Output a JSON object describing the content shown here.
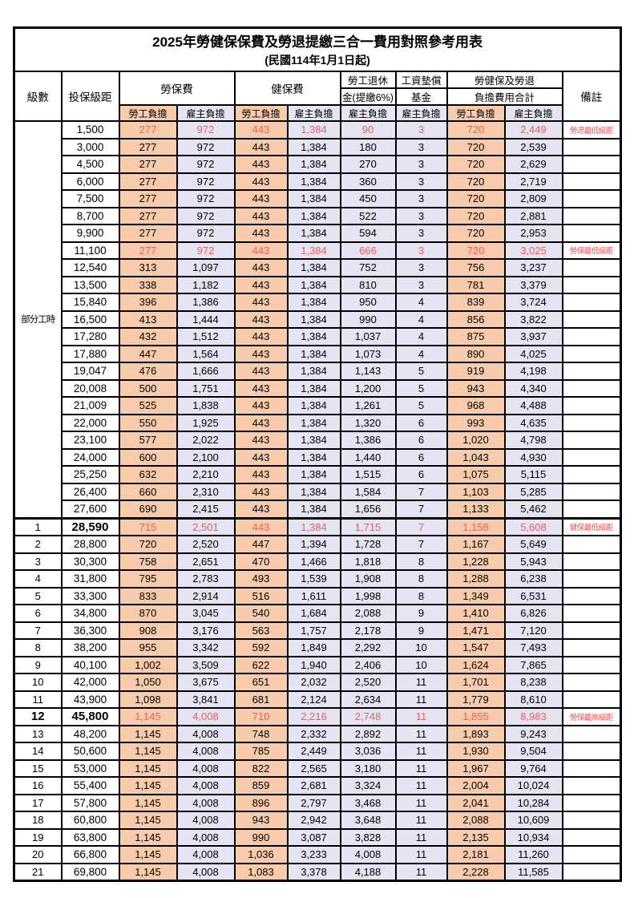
{
  "title": "2025年勞健保保費及勞退提繳三合一費用對照參考用表",
  "subtitle": "(民國114年1月1日起)",
  "header": {
    "level": "級數",
    "bracket": "投保級距",
    "labor": "勞保費",
    "health": "健保費",
    "pension_line1": "勞工退休",
    "pension_line2": "金(提繳6%)",
    "fund_line1": "工資墊償",
    "fund_line2": "基金",
    "total_line1": "勞健保及勞退",
    "total_line2": "負擔費用合計",
    "remark": "備註",
    "employee": "勞工負擔",
    "employer": "雇主負擔"
  },
  "part_time_label": "部分工時",
  "part_time_rowspan": 23,
  "colors": {
    "employee_bg": "#F8CBAD",
    "employer_bg": "#E4E4F2",
    "highlight_text": "#FA5A52",
    "remark_text": "#FA4B46",
    "border": "#000000"
  },
  "rows": [
    {
      "level": null,
      "bracket": "1,500",
      "v": [
        "277",
        "972",
        "443",
        "1,384",
        "90",
        "3",
        "720",
        "2,449"
      ],
      "remark": "勞退最低級距",
      "hl": true
    },
    {
      "level": null,
      "bracket": "3,000",
      "v": [
        "277",
        "972",
        "443",
        "1,384",
        "180",
        "3",
        "720",
        "2,539"
      ],
      "remark": ""
    },
    {
      "level": null,
      "bracket": "4,500",
      "v": [
        "277",
        "972",
        "443",
        "1,384",
        "270",
        "3",
        "720",
        "2,629"
      ],
      "remark": ""
    },
    {
      "level": null,
      "bracket": "6,000",
      "v": [
        "277",
        "972",
        "443",
        "1,384",
        "360",
        "3",
        "720",
        "2,719"
      ],
      "remark": ""
    },
    {
      "level": null,
      "bracket": "7,500",
      "v": [
        "277",
        "972",
        "443",
        "1,384",
        "450",
        "3",
        "720",
        "2,809"
      ],
      "remark": ""
    },
    {
      "level": null,
      "bracket": "8,700",
      "v": [
        "277",
        "972",
        "443",
        "1,384",
        "522",
        "3",
        "720",
        "2,881"
      ],
      "remark": ""
    },
    {
      "level": null,
      "bracket": "9,900",
      "v": [
        "277",
        "972",
        "443",
        "1,384",
        "594",
        "3",
        "720",
        "2,953"
      ],
      "remark": ""
    },
    {
      "level": null,
      "bracket": "11,100",
      "v": [
        "277",
        "972",
        "443",
        "1,384",
        "666",
        "3",
        "720",
        "3,025"
      ],
      "remark": "勞保最低級距",
      "hl": true
    },
    {
      "level": null,
      "bracket": "12,540",
      "v": [
        "313",
        "1,097",
        "443",
        "1,384",
        "752",
        "3",
        "756",
        "3,237"
      ],
      "remark": ""
    },
    {
      "level": null,
      "bracket": "13,500",
      "v": [
        "338",
        "1,182",
        "443",
        "1,384",
        "810",
        "3",
        "781",
        "3,379"
      ],
      "remark": ""
    },
    {
      "level": null,
      "bracket": "15,840",
      "v": [
        "396",
        "1,386",
        "443",
        "1,384",
        "950",
        "4",
        "839",
        "3,724"
      ],
      "remark": ""
    },
    {
      "level": null,
      "bracket": "16,500",
      "v": [
        "413",
        "1,444",
        "443",
        "1,384",
        "990",
        "4",
        "856",
        "3,822"
      ],
      "remark": ""
    },
    {
      "level": null,
      "bracket": "17,280",
      "v": [
        "432",
        "1,512",
        "443",
        "1,384",
        "1,037",
        "4",
        "875",
        "3,937"
      ],
      "remark": ""
    },
    {
      "level": null,
      "bracket": "17,880",
      "v": [
        "447",
        "1,564",
        "443",
        "1,384",
        "1,073",
        "4",
        "890",
        "4,025"
      ],
      "remark": ""
    },
    {
      "level": null,
      "bracket": "19,047",
      "v": [
        "476",
        "1,666",
        "443",
        "1,384",
        "1,143",
        "5",
        "919",
        "4,198"
      ],
      "remark": ""
    },
    {
      "level": null,
      "bracket": "20,008",
      "v": [
        "500",
        "1,751",
        "443",
        "1,384",
        "1,200",
        "5",
        "943",
        "4,340"
      ],
      "remark": ""
    },
    {
      "level": null,
      "bracket": "21,009",
      "v": [
        "525",
        "1,838",
        "443",
        "1,384",
        "1,261",
        "5",
        "968",
        "4,488"
      ],
      "remark": ""
    },
    {
      "level": null,
      "bracket": "22,000",
      "v": [
        "550",
        "1,925",
        "443",
        "1,384",
        "1,320",
        "6",
        "993",
        "4,635"
      ],
      "remark": ""
    },
    {
      "level": null,
      "bracket": "23,100",
      "v": [
        "577",
        "2,022",
        "443",
        "1,384",
        "1,386",
        "6",
        "1,020",
        "4,798"
      ],
      "remark": ""
    },
    {
      "level": null,
      "bracket": "24,000",
      "v": [
        "600",
        "2,100",
        "443",
        "1,384",
        "1,440",
        "6",
        "1,043",
        "4,930"
      ],
      "remark": ""
    },
    {
      "level": null,
      "bracket": "25,250",
      "v": [
        "632",
        "2,210",
        "443",
        "1,384",
        "1,515",
        "6",
        "1,075",
        "5,115"
      ],
      "remark": ""
    },
    {
      "level": null,
      "bracket": "26,400",
      "v": [
        "660",
        "2,310",
        "443",
        "1,384",
        "1,584",
        "7",
        "1,103",
        "5,285"
      ],
      "remark": ""
    },
    {
      "level": null,
      "bracket": "27,600",
      "v": [
        "690",
        "2,415",
        "443",
        "1,384",
        "1,656",
        "7",
        "1,133",
        "5,462"
      ],
      "remark": ""
    },
    {
      "level": "1",
      "bracket": "28,590",
      "v": [
        "715",
        "2,501",
        "443",
        "1,384",
        "1,715",
        "7",
        "1,158",
        "5,608"
      ],
      "remark": "健保最低級距",
      "hl": true,
      "thick": true,
      "boldBracket": true
    },
    {
      "level": "2",
      "bracket": "28,800",
      "v": [
        "720",
        "2,520",
        "447",
        "1,394",
        "1,728",
        "7",
        "1,167",
        "5,649"
      ],
      "remark": ""
    },
    {
      "level": "3",
      "bracket": "30,300",
      "v": [
        "758",
        "2,651",
        "470",
        "1,466",
        "1,818",
        "8",
        "1,228",
        "5,943"
      ],
      "remark": ""
    },
    {
      "level": "4",
      "bracket": "31,800",
      "v": [
        "795",
        "2,783",
        "493",
        "1,539",
        "1,908",
        "8",
        "1,288",
        "6,238"
      ],
      "remark": ""
    },
    {
      "level": "5",
      "bracket": "33,300",
      "v": [
        "833",
        "2,914",
        "516",
        "1,611",
        "1,998",
        "8",
        "1,349",
        "6,531"
      ],
      "remark": ""
    },
    {
      "level": "6",
      "bracket": "34,800",
      "v": [
        "870",
        "3,045",
        "540",
        "1,684",
        "2,088",
        "9",
        "1,410",
        "6,826"
      ],
      "remark": ""
    },
    {
      "level": "7",
      "bracket": "36,300",
      "v": [
        "908",
        "3,176",
        "563",
        "1,757",
        "2,178",
        "9",
        "1,471",
        "7,120"
      ],
      "remark": ""
    },
    {
      "level": "8",
      "bracket": "38,200",
      "v": [
        "955",
        "3,342",
        "592",
        "1,849",
        "2,292",
        "10",
        "1,547",
        "7,493"
      ],
      "remark": ""
    },
    {
      "level": "9",
      "bracket": "40,100",
      "v": [
        "1,002",
        "3,509",
        "622",
        "1,940",
        "2,406",
        "10",
        "1,624",
        "7,865"
      ],
      "remark": ""
    },
    {
      "level": "10",
      "bracket": "42,000",
      "v": [
        "1,050",
        "3,675",
        "651",
        "2,032",
        "2,520",
        "11",
        "1,701",
        "8,238"
      ],
      "remark": ""
    },
    {
      "level": "11",
      "bracket": "43,900",
      "v": [
        "1,098",
        "3,841",
        "681",
        "2,124",
        "2,634",
        "11",
        "1,779",
        "8,610"
      ],
      "remark": ""
    },
    {
      "level": "12",
      "bracket": "45,800",
      "v": [
        "1,145",
        "4,008",
        "710",
        "2,216",
        "2,748",
        "11",
        "1,855",
        "8,983"
      ],
      "remark": "勞保最高級距",
      "hl": true,
      "boldLevel": true,
      "boldBracket": true
    },
    {
      "level": "13",
      "bracket": "48,200",
      "v": [
        "1,145",
        "4,008",
        "748",
        "2,332",
        "2,892",
        "11",
        "1,893",
        "9,243"
      ],
      "remark": ""
    },
    {
      "level": "14",
      "bracket": "50,600",
      "v": [
        "1,145",
        "4,008",
        "785",
        "2,449",
        "3,036",
        "11",
        "1,930",
        "9,504"
      ],
      "remark": ""
    },
    {
      "level": "15",
      "bracket": "53,000",
      "v": [
        "1,145",
        "4,008",
        "822",
        "2,565",
        "3,180",
        "11",
        "1,967",
        "9,764"
      ],
      "remark": ""
    },
    {
      "level": "16",
      "bracket": "55,400",
      "v": [
        "1,145",
        "4,008",
        "859",
        "2,681",
        "3,324",
        "11",
        "2,004",
        "10,024"
      ],
      "remark": ""
    },
    {
      "level": "17",
      "bracket": "57,800",
      "v": [
        "1,145",
        "4,008",
        "896",
        "2,797",
        "3,468",
        "11",
        "2,041",
        "10,284"
      ],
      "remark": ""
    },
    {
      "level": "18",
      "bracket": "60,800",
      "v": [
        "1,145",
        "4,008",
        "943",
        "2,942",
        "3,648",
        "11",
        "2,088",
        "10,609"
      ],
      "remark": ""
    },
    {
      "level": "19",
      "bracket": "63,800",
      "v": [
        "1,145",
        "4,008",
        "990",
        "3,087",
        "3,828",
        "11",
        "2,135",
        "10,934"
      ],
      "remark": ""
    },
    {
      "level": "20",
      "bracket": "66,800",
      "v": [
        "1,145",
        "4,008",
        "1,036",
        "3,233",
        "4,008",
        "11",
        "2,181",
        "11,260"
      ],
      "remark": ""
    },
    {
      "level": "21",
      "bracket": "69,800",
      "v": [
        "1,145",
        "4,008",
        "1,083",
        "3,378",
        "4,188",
        "11",
        "2,228",
        "11,585"
      ],
      "remark": ""
    }
  ]
}
